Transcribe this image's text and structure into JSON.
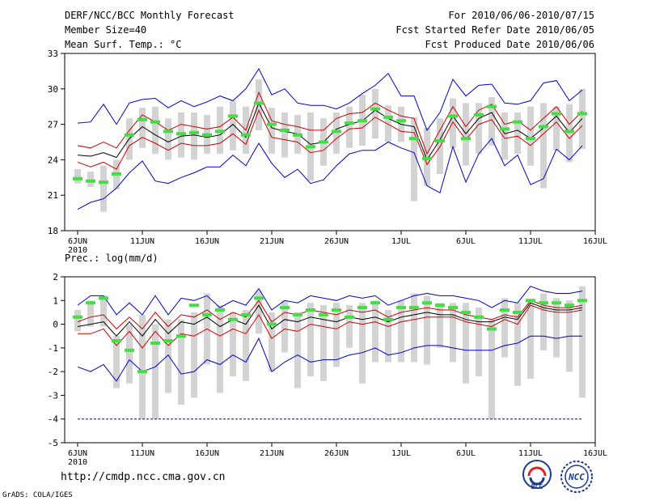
{
  "header": {
    "title": "DERF/NCC/BCC Monthly Forecast",
    "member_size": "Member Size=40",
    "variable1": "Mean Surf. Temp.: °C",
    "period": "For 2010/06/06-2010/07/15",
    "fcst_started": "Fcst Started Refer Date 2010/06/05",
    "fcst_produced": "Fcst Produced Date 2010/06/06"
  },
  "footer": {
    "url": "http://cmdp.ncc.cma.gov.cn",
    "credit": "GrADS: COLA/IGES",
    "logo1_text": "BCC",
    "logo2_text": "NCC"
  },
  "colors": {
    "envelope": "#0000cc",
    "quartile": "#cc0000",
    "median": "#000000",
    "obs": "#44dd44",
    "box": "#d3d3d3"
  },
  "chart_data": [
    {
      "type": "box-ensemble",
      "title": "Mean Surf. Temp.: °C",
      "ylim": [
        18,
        33
      ],
      "yticks": [
        18,
        21,
        24,
        27,
        30,
        33
      ],
      "x_tick_positions": [
        0,
        5,
        10,
        15,
        20,
        25,
        30,
        35,
        40
      ],
      "x_tick_labels": [
        "6JUN",
        "11JUN",
        "16JUN",
        "21JUN",
        "26JUN",
        "1JUL",
        "6JUL",
        "11JUL",
        "16JUL"
      ],
      "x_year_label": "2010",
      "days": [
        "6JUN",
        "7JUN",
        "8JUN",
        "9JUN",
        "10JUN",
        "11JUN",
        "12JUN",
        "13JUN",
        "14JUN",
        "15JUN",
        "16JUN",
        "17JUN",
        "18JUN",
        "19JUN",
        "20JUN",
        "21JUN",
        "22JUN",
        "23JUN",
        "24JUN",
        "25JUN",
        "26JUN",
        "27JUN",
        "28JUN",
        "29JUN",
        "30JUN",
        "1JUL",
        "2JUL",
        "3JUL",
        "4JUL",
        "5JUL",
        "6JUL",
        "7JUL",
        "8JUL",
        "9JUL",
        "10JUL",
        "11JUL",
        "12JUL",
        "13JUL",
        "14JUL",
        "15JUL"
      ],
      "max": [
        27.1,
        27.2,
        28.7,
        27.0,
        28.8,
        29.1,
        29.2,
        28.4,
        29.0,
        28.5,
        28.9,
        29.4,
        29.0,
        30.0,
        31.7,
        29.5,
        30.0,
        28.8,
        28.6,
        28.6,
        28.3,
        28.8,
        29.6,
        30.3,
        31.3,
        29.4,
        29.4,
        26.5,
        28.0,
        30.8,
        29.4,
        30.3,
        30.4,
        28.8,
        28.7,
        29.0,
        30.5,
        30.7,
        29.0,
        29.9
      ],
      "q3": [
        25.2,
        25.0,
        25.5,
        25.0,
        26.5,
        27.8,
        27.2,
        26.5,
        27.0,
        26.8,
        26.6,
        26.8,
        27.6,
        26.5,
        29.7,
        27.3,
        27.0,
        26.8,
        26.5,
        26.5,
        27.5,
        27.9,
        28.0,
        28.8,
        28.2,
        27.7,
        27.5,
        24.5,
        26.5,
        28.5,
        26.8,
        28.2,
        28.7,
        27.0,
        27.3,
        26.5,
        27.5,
        28.5,
        27.0,
        28.1
      ],
      "median": [
        24.4,
        24.3,
        24.6,
        24.2,
        25.8,
        26.8,
        26.1,
        25.5,
        26.0,
        26.1,
        25.9,
        26.1,
        27.0,
        25.9,
        28.8,
        26.7,
        26.4,
        26.2,
        25.3,
        25.5,
        26.6,
        27.0,
        27.3,
        28.2,
        27.5,
        27.0,
        26.8,
        24.0,
        25.7,
        27.7,
        26.2,
        27.5,
        28.0,
        26.2,
        26.5,
        25.8,
        26.7,
        27.7,
        26.3,
        27.5
      ],
      "q1": [
        23.8,
        23.4,
        23.8,
        23.2,
        25.2,
        25.9,
        25.4,
        24.8,
        25.4,
        25.2,
        25.2,
        25.4,
        26.2,
        25.3,
        28.2,
        25.9,
        25.7,
        25.5,
        24.6,
        24.8,
        25.8,
        26.6,
        26.7,
        27.6,
        27.0,
        26.4,
        26.3,
        23.6,
        25.1,
        27.2,
        25.7,
        27.0,
        27.4,
        25.8,
        26.0,
        25.2,
        26.2,
        27.2,
        25.8,
        26.9
      ],
      "min": [
        19.8,
        20.4,
        20.7,
        21.6,
        22.9,
        23.9,
        22.2,
        22.0,
        22.5,
        22.9,
        23.4,
        23.4,
        24.4,
        23.5,
        25.4,
        23.7,
        22.5,
        23.2,
        22.0,
        22.3,
        23.5,
        24.5,
        24.8,
        24.8,
        25.5,
        25.0,
        24.6,
        21.8,
        21.2,
        25.1,
        22.1,
        24.5,
        25.8,
        23.5,
        24.4,
        21.9,
        22.4,
        24.9,
        24.0,
        25.2
      ],
      "box_low": [
        22.0,
        21.7,
        19.6,
        21.5,
        24.0,
        25.0,
        24.5,
        24.0,
        24.2,
        24.0,
        24.5,
        24.5,
        24.8,
        24.5,
        26.5,
        24.5,
        24.2,
        24.5,
        22.2,
        23.5,
        24.5,
        25.0,
        25.2,
        25.8,
        25.5,
        25.5,
        20.5,
        21.8,
        22.8,
        25.0,
        23.5,
        24.5,
        25.2,
        24.0,
        24.5,
        23.5,
        21.6,
        24.8,
        23.8,
        24.9
      ],
      "box_high": [
        23.2,
        23.0,
        23.5,
        24.0,
        27.5,
        28.4,
        28.5,
        27.5,
        28.0,
        28.0,
        27.8,
        28.5,
        29.0,
        28.5,
        30.8,
        28.4,
        28.0,
        27.8,
        28.0,
        27.5,
        28.0,
        28.5,
        29.5,
        30.0,
        28.6,
        28.5,
        27.6,
        26.7,
        27.5,
        29.2,
        28.8,
        28.8,
        29.3,
        28.0,
        28.0,
        28.5,
        28.8,
        28.5,
        28.7,
        30.0
      ],
      "obs": [
        22.4,
        22.2,
        22.1,
        22.8,
        26.1,
        27.4,
        27.2,
        26.4,
        26.2,
        26.3,
        26.1,
        26.4,
        27.7,
        26.1,
        28.8,
        27.0,
        26.5,
        26.1,
        25.1,
        25.5,
        26.4,
        27.1,
        27.3,
        28.3,
        27.6,
        27.3,
        25.8,
        24.1,
        25.6,
        27.7,
        25.8,
        27.8,
        28.5,
        26.6,
        27.2,
        25.8,
        26.8,
        27.9,
        26.4,
        27.9
      ]
    },
    {
      "type": "box-ensemble",
      "title": "Prec.: log(mm/d)",
      "ylim": [
        -5,
        2
      ],
      "yticks": [
        -5,
        -4,
        -3,
        -2,
        -1,
        0,
        1,
        2
      ],
      "x_tick_positions": [
        0,
        5,
        10,
        15,
        20,
        25,
        30,
        35,
        40
      ],
      "x_tick_labels": [
        "6JUN",
        "11JUN",
        "16JUN",
        "21JUN",
        "26JUN",
        "1JUL",
        "6JUL",
        "11JUL",
        "16JUL"
      ],
      "x_year_label": "2010",
      "days": [
        "6JUN",
        "7JUN",
        "8JUN",
        "9JUN",
        "10JUN",
        "11JUN",
        "12JUN",
        "13JUN",
        "14JUN",
        "15JUN",
        "16JUN",
        "17JUN",
        "18JUN",
        "19JUN",
        "20JUN",
        "21JUN",
        "22JUN",
        "23JUN",
        "24JUN",
        "25JUN",
        "26JUN",
        "27JUN",
        "28JUN",
        "29JUN",
        "30JUN",
        "1JUL",
        "2JUL",
        "3JUL",
        "4JUL",
        "5JUL",
        "6JUL",
        "7JUL",
        "8JUL",
        "9JUL",
        "10JUL",
        "11JUL",
        "12JUL",
        "13JUL",
        "14JUL",
        "15JUL"
      ],
      "max": [
        0.8,
        1.2,
        1.2,
        0.4,
        0.9,
        0.4,
        1.2,
        0.4,
        1.1,
        1.0,
        1.2,
        0.7,
        1.0,
        0.8,
        1.5,
        0.6,
        1.0,
        0.9,
        1.2,
        1.1,
        1.0,
        1.2,
        1.1,
        1.2,
        0.8,
        1.0,
        1.2,
        1.3,
        1.2,
        1.2,
        1.1,
        1.0,
        0.7,
        1.0,
        0.9,
        1.6,
        1.4,
        1.3,
        1.3,
        1.4
      ],
      "q3": [
        0.1,
        0.3,
        0.4,
        -0.2,
        0.3,
        -0.2,
        0.5,
        -0.1,
        0.4,
        0.3,
        0.6,
        0.2,
        0.5,
        0.3,
        1.0,
        0.1,
        0.5,
        0.4,
        0.6,
        0.5,
        0.4,
        0.6,
        0.5,
        0.6,
        0.3,
        0.5,
        0.6,
        0.7,
        0.6,
        0.6,
        0.4,
        0.3,
        0.2,
        0.4,
        0.3,
        1.0,
        0.8,
        0.7,
        0.7,
        0.8
      ],
      "median": [
        -0.1,
        0.0,
        0.1,
        -0.5,
        0.1,
        -0.5,
        0.2,
        -0.4,
        0.1,
        0.0,
        0.3,
        -0.1,
        0.2,
        0.0,
        0.8,
        -0.2,
        0.2,
        0.1,
        0.3,
        0.2,
        0.1,
        0.3,
        0.2,
        0.3,
        0.1,
        0.3,
        0.4,
        0.5,
        0.4,
        0.4,
        0.2,
        0.1,
        0.1,
        0.3,
        0.2,
        0.9,
        0.7,
        0.6,
        0.6,
        0.7
      ],
      "q1": [
        -0.4,
        -0.4,
        -0.2,
        -0.9,
        -0.3,
        -1.0,
        -0.3,
        -0.9,
        -0.4,
        -0.5,
        -0.2,
        -0.5,
        -0.2,
        -0.4,
        0.4,
        -0.6,
        -0.2,
        -0.3,
        0.0,
        -0.1,
        -0.2,
        0.1,
        0.0,
        0.1,
        -0.1,
        0.1,
        0.2,
        0.3,
        0.3,
        0.3,
        0.1,
        0.0,
        -0.1,
        0.2,
        0.0,
        0.8,
        0.6,
        0.5,
        0.5,
        0.6
      ],
      "min": [
        -1.8,
        -2.0,
        -1.7,
        -2.4,
        -1.5,
        -2.0,
        -1.8,
        -1.3,
        -2.1,
        -2.0,
        -1.5,
        -1.7,
        -1.3,
        -1.6,
        -0.6,
        -2.0,
        -1.6,
        -1.3,
        -1.6,
        -1.5,
        -1.5,
        -1.3,
        -1.2,
        -1.0,
        -1.3,
        -1.2,
        -1.0,
        -0.9,
        -0.9,
        -1.0,
        -1.1,
        -1.1,
        -1.1,
        -0.9,
        -0.8,
        -0.5,
        -0.5,
        -0.6,
        -0.5,
        -0.5
      ],
      "box_low": [
        -0.3,
        -0.1,
        -0.1,
        -2.7,
        -2.5,
        -4.0,
        -4.0,
        -2.9,
        -3.4,
        -3.1,
        -1.7,
        -2.9,
        -2.2,
        -2.4,
        -0.4,
        -2.0,
        -1.2,
        -2.7,
        -2.2,
        -2.4,
        -1.8,
        -1.0,
        -2.5,
        -1.6,
        -1.6,
        -1.6,
        -1.6,
        -1.7,
        -1.0,
        -1.6,
        -2.5,
        -2.2,
        -4.0,
        -1.4,
        -2.6,
        -2.3,
        -1.1,
        -1.4,
        -2.0,
        -3.1
      ],
      "box_high": [
        0.6,
        1.0,
        1.2,
        -0.5,
        0.0,
        0.4,
        0.0,
        0.2,
        0.2,
        0.5,
        1.3,
        0.8,
        0.5,
        0.6,
        1.4,
        0.5,
        1.0,
        0.5,
        0.9,
        0.8,
        0.9,
        0.8,
        0.9,
        1.0,
        0.6,
        1.0,
        1.3,
        1.2,
        0.9,
        0.9,
        0.9,
        0.7,
        0.2,
        1.1,
        0.9,
        0.9,
        1.3,
        1.1,
        1.0,
        1.6
      ],
      "obs": [
        0.3,
        0.9,
        1.1,
        -0.7,
        -1.1,
        -2.0,
        -0.8,
        -0.7,
        -0.5,
        0.8,
        0.4,
        0.6,
        0.2,
        0.4,
        1.1,
        0.0,
        0.7,
        0.4,
        0.6,
        0.4,
        0.6,
        0.3,
        0.7,
        0.9,
        0.2,
        0.7,
        0.7,
        0.9,
        0.8,
        0.7,
        0.5,
        0.3,
        -0.2,
        0.6,
        0.5,
        1.0,
        0.9,
        0.9,
        0.8,
        1.0
      ],
      "floor_line": -4
    }
  ]
}
